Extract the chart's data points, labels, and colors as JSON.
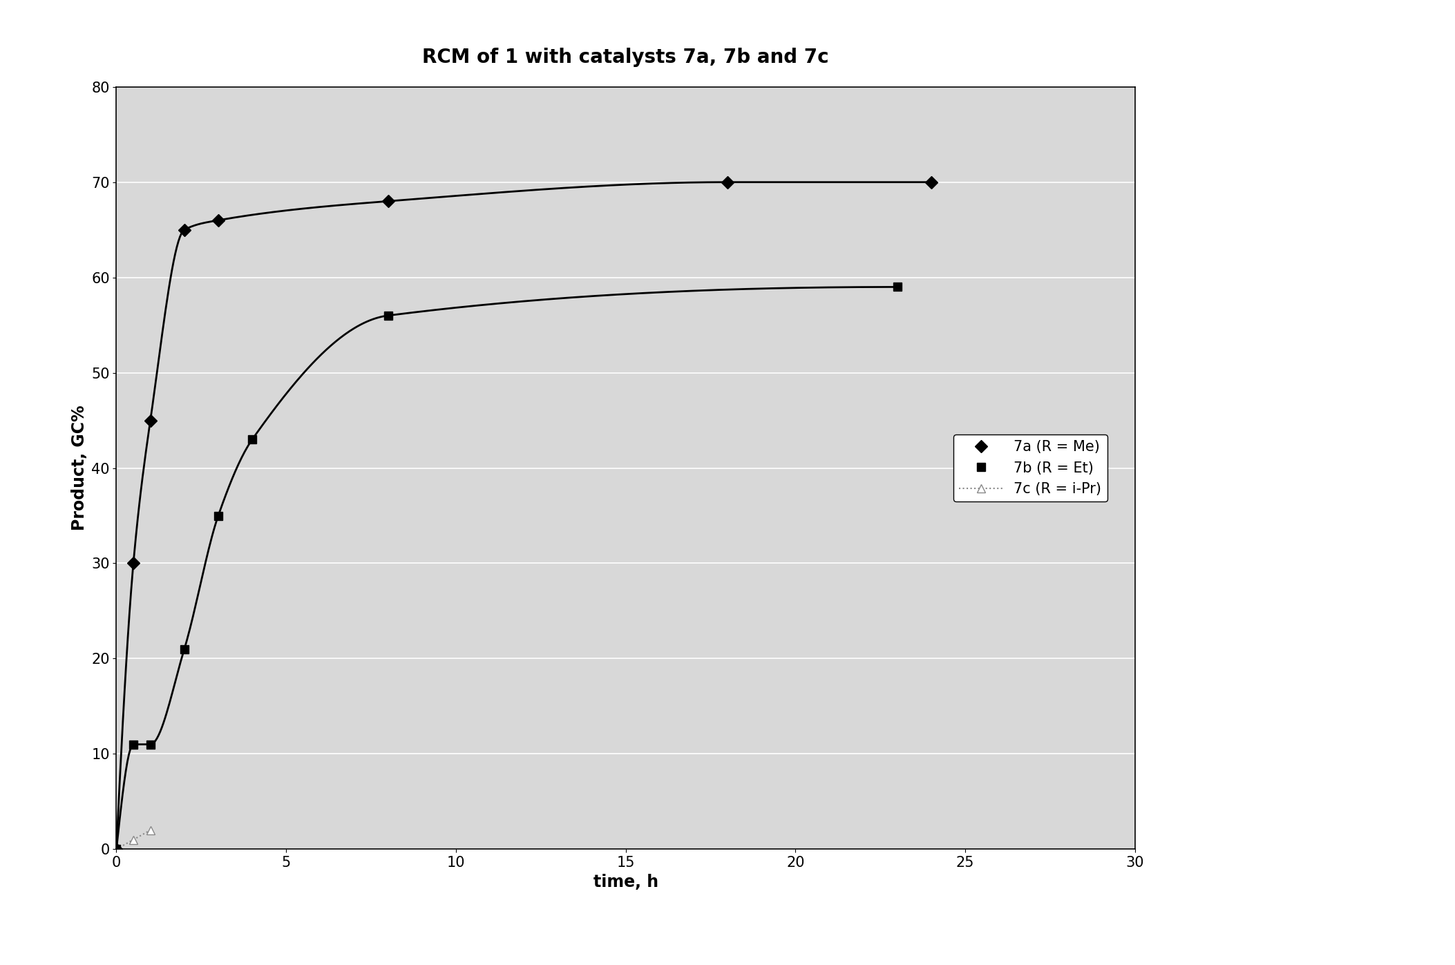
{
  "title": "RCM of 1 with catalysts 7a, 7b and 7c",
  "xlabel": "time, h",
  "ylabel": "Product, GC%",
  "xlim": [
    0,
    30
  ],
  "ylim": [
    0,
    80
  ],
  "xticks": [
    0,
    5,
    10,
    15,
    20,
    25,
    30
  ],
  "yticks": [
    0,
    10,
    20,
    30,
    40,
    50,
    60,
    70,
    80
  ],
  "series": [
    {
      "label": "7a (R = Me)",
      "x": [
        0,
        0.5,
        1,
        2,
        3,
        8,
        18,
        24
      ],
      "y": [
        0,
        30,
        45,
        65,
        66,
        68,
        70,
        70
      ],
      "color": "#000000",
      "linestyle": "-",
      "linewidth": 2.0,
      "marker": "D",
      "markersize": 9,
      "markerfacecolor": "#000000",
      "markeredgecolor": "#000000"
    },
    {
      "label": "7b (R = Et)",
      "x": [
        0,
        0.5,
        1,
        2,
        3,
        4,
        8,
        23
      ],
      "y": [
        0,
        11,
        11,
        21,
        35,
        43,
        56,
        59
      ],
      "color": "#000000",
      "linestyle": "-",
      "linewidth": 2.0,
      "marker": "s",
      "markersize": 9,
      "markerfacecolor": "#000000",
      "markeredgecolor": "#000000"
    },
    {
      "label": "7c (R = i-Pr)",
      "x": [
        0,
        0.5,
        1
      ],
      "y": [
        0,
        1,
        2
      ],
      "color": "#888888",
      "linestyle": ":",
      "linewidth": 1.5,
      "marker": "^",
      "markersize": 9,
      "markerfacecolor": "white",
      "markeredgecolor": "#888888"
    }
  ],
  "background_color": "#ffffff",
  "plot_background": "#d8d8d8",
  "grid_color": "#ffffff",
  "title_fontsize": 20,
  "axis_label_fontsize": 17,
  "tick_fontsize": 15,
  "legend_fontsize": 15
}
